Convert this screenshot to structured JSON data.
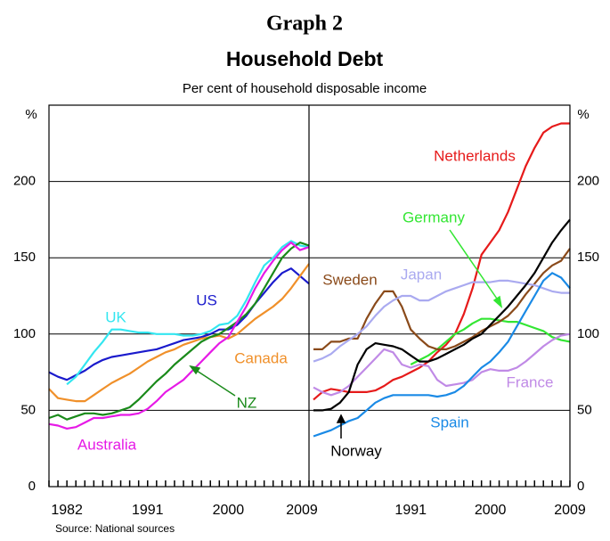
{
  "title": "Graph 2",
  "subtitle": "Household Debt",
  "note": "Per cent of household disposable income",
  "source": "Source: National sources",
  "chart_data": [
    {
      "type": "line",
      "y_label": "%",
      "xlim": [
        1980,
        2009
      ],
      "ylim": [
        0,
        250
      ],
      "xticks": [
        1982,
        1991,
        2000,
        2009
      ],
      "yticks": [
        0,
        50,
        100,
        150,
        200
      ],
      "grid": true,
      "x": [
        1980,
        1981,
        1982,
        1983,
        1984,
        1985,
        1986,
        1987,
        1988,
        1989,
        1990,
        1991,
        1992,
        1993,
        1994,
        1995,
        1996,
        1997,
        1998,
        1999,
        2000,
        2001,
        2002,
        2003,
        2004,
        2005,
        2006,
        2007,
        2008,
        2009
      ],
      "series": [
        {
          "name": "US",
          "color": "#1a1acc",
          "values": [
            75,
            72,
            70,
            73,
            76,
            80,
            83,
            85,
            86,
            87,
            88,
            89,
            90,
            92,
            94,
            96,
            97,
            98,
            100,
            103,
            103,
            106,
            112,
            120,
            127,
            134,
            140,
            143,
            138,
            133
          ]
        },
        {
          "name": "UK",
          "color": "#33e6f0",
          "values": [
            null,
            null,
            67,
            72,
            80,
            88,
            95,
            103,
            103,
            102,
            101,
            101,
            100,
            100,
            100,
            99,
            99,
            100,
            102,
            106,
            107,
            112,
            122,
            134,
            145,
            150,
            157,
            161,
            158,
            157
          ]
        },
        {
          "name": "Canada",
          "color": "#f0902a",
          "values": [
            64,
            58,
            57,
            56,
            56,
            60,
            64,
            68,
            71,
            74,
            78,
            82,
            85,
            88,
            90,
            93,
            95,
            97,
            98,
            99,
            97,
            100,
            105,
            110,
            114,
            118,
            123,
            130,
            138,
            146
          ]
        },
        {
          "name": "NZ",
          "color": "#1a8a1a",
          "values": [
            45,
            47,
            44,
            46,
            48,
            48,
            47,
            48,
            50,
            52,
            57,
            63,
            69,
            74,
            80,
            85,
            90,
            95,
            98,
            100,
            104,
            108,
            113,
            120,
            130,
            140,
            150,
            156,
            160,
            158
          ]
        },
        {
          "name": "Australia",
          "color": "#e61ae6",
          "values": [
            41,
            40,
            38,
            39,
            42,
            45,
            45,
            46,
            47,
            47,
            48,
            51,
            56,
            62,
            66,
            70,
            76,
            82,
            88,
            94,
            98,
            108,
            118,
            130,
            140,
            148,
            155,
            160,
            155,
            157
          ]
        }
      ]
    },
    {
      "type": "line",
      "y_label": "%",
      "xlim": [
        1979.5,
        2009
      ],
      "ylim": [
        0,
        250
      ],
      "xticks": [
        1991,
        2000,
        2009
      ],
      "yticks": [
        0,
        50,
        100,
        150,
        200
      ],
      "grid": true,
      "x": [
        1980,
        1981,
        1982,
        1983,
        1984,
        1985,
        1986,
        1987,
        1988,
        1989,
        1990,
        1991,
        1992,
        1993,
        1994,
        1995,
        1996,
        1997,
        1998,
        1999,
        2000,
        2001,
        2002,
        2003,
        2004,
        2005,
        2006,
        2007,
        2008,
        2009
      ],
      "series": [
        {
          "name": "Netherlands",
          "color": "#e61a1a",
          "values": [
            57,
            62,
            64,
            63,
            62,
            62,
            62,
            63,
            66,
            70,
            72,
            75,
            78,
            82,
            88,
            93,
            100,
            113,
            130,
            152,
            160,
            168,
            180,
            195,
            210,
            222,
            232,
            236,
            238,
            238
          ]
        },
        {
          "name": "Germany",
          "color": "#33e633",
          "values": [
            null,
            null,
            null,
            null,
            null,
            null,
            null,
            null,
            null,
            null,
            null,
            80,
            83,
            86,
            90,
            95,
            100,
            103,
            107,
            110,
            110,
            109,
            108,
            108,
            106,
            104,
            102,
            98,
            96,
            95
          ]
        },
        {
          "name": "Sweden",
          "color": "#8a4a1a",
          "values": [
            90,
            90,
            95,
            95,
            97,
            97,
            110,
            120,
            128,
            128,
            118,
            103,
            97,
            92,
            90,
            90,
            92,
            95,
            98,
            102,
            105,
            108,
            112,
            118,
            126,
            133,
            140,
            145,
            148,
            156
          ]
        },
        {
          "name": "Japan",
          "color": "#aaaaf0",
          "values": [
            82,
            84,
            87,
            92,
            96,
            100,
            105,
            112,
            118,
            122,
            125,
            125,
            122,
            122,
            125,
            128,
            130,
            132,
            134,
            134,
            134,
            135,
            135,
            134,
            133,
            132,
            130,
            128,
            127,
            127
          ]
        },
        {
          "name": "France",
          "color": "#c08ae6",
          "values": [
            65,
            62,
            60,
            62,
            66,
            72,
            78,
            84,
            90,
            88,
            80,
            78,
            80,
            79,
            70,
            66,
            67,
            68,
            70,
            75,
            77,
            76,
            76,
            78,
            82,
            87,
            92,
            96,
            99,
            100
          ]
        },
        {
          "name": "Spain",
          "color": "#1a8ae6",
          "values": [
            33,
            35,
            37,
            40,
            43,
            45,
            50,
            55,
            58,
            60,
            60,
            60,
            60,
            60,
            59,
            60,
            62,
            66,
            72,
            78,
            82,
            88,
            95,
            105,
            115,
            125,
            135,
            140,
            137,
            130
          ]
        },
        {
          "name": "Norway",
          "color": "#000000",
          "values": [
            50,
            50,
            51,
            55,
            62,
            80,
            90,
            94,
            93,
            92,
            90,
            86,
            82,
            82,
            84,
            87,
            90,
            93,
            97,
            100,
            106,
            112,
            118,
            125,
            132,
            140,
            150,
            160,
            168,
            175
          ]
        }
      ]
    }
  ]
}
